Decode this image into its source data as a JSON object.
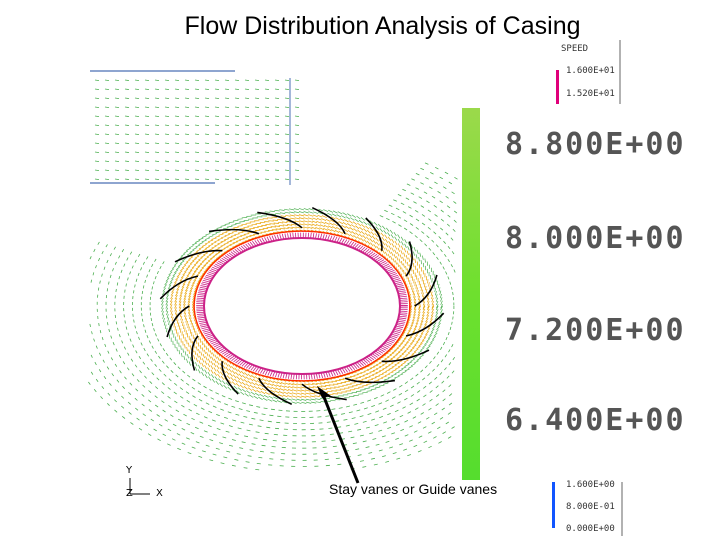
{
  "title": "Flow Distribution Analysis of Casing",
  "legend": {
    "heading": "SPEED",
    "top_values": [
      "1.600E+01",
      "1.520E+01"
    ],
    "main_values": [
      "8.800E+00",
      "8.000E+00",
      "7.200E+00",
      "6.400E+00"
    ],
    "bottom_values": [
      "1.600E+00",
      "8.000E-01",
      "0.000E+00"
    ],
    "top_swatch_color": "#e0007a",
    "bar_colors": [
      "#9bd94b",
      "#6ee02e",
      "#55dd2e"
    ],
    "bottom_swatch_color": "#1155ff"
  },
  "annotation": "Stay vanes or Guide vanes",
  "axes": {
    "y": "Y",
    "z": "Z",
    "x": "X"
  },
  "colors": {
    "casing_vectors": "#4caf50",
    "vane_vectors": "#e8a100",
    "ring_vectors": "#cc2288",
    "inner_ring": "#ff2a00",
    "vanes": "#000000"
  }
}
